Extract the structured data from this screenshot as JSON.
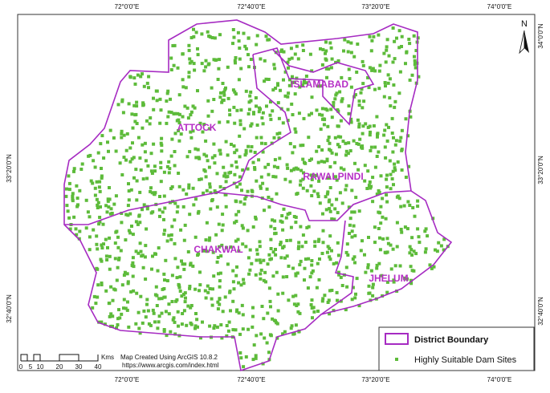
{
  "graticule": {
    "top": [
      "72°0'0\"E",
      "72°40'0\"E",
      "73°20'0\"E",
      "74°0'0\"E"
    ],
    "bottom": [
      "72°0'0\"E",
      "72°40'0\"E",
      "73°20'0\"E",
      "74°0'0\"E"
    ],
    "left": [
      "33°20'0\"N",
      "32°40'0\"N"
    ],
    "right": [
      "34°0'0\"N",
      "33°20'0\"N",
      "32°40'0\"N"
    ]
  },
  "districts": [
    "ISLAMABAD",
    "ATTOCK",
    "RAWALPINDI",
    "CHAKWAL",
    "JHELUM"
  ],
  "north_arrow": "N",
  "legend": {
    "items": [
      "District Boundary",
      "Highly Suitable Dam Sites"
    ]
  },
  "scale_bar": {
    "unit": "Kms",
    "ticks": [
      "0",
      "5",
      "10",
      "20",
      "30",
      "40"
    ]
  },
  "credit": {
    "line1": "Map Created Using ArcGIS 10.8.2",
    "line2": "https://www.arcgis.com/index.html"
  }
}
